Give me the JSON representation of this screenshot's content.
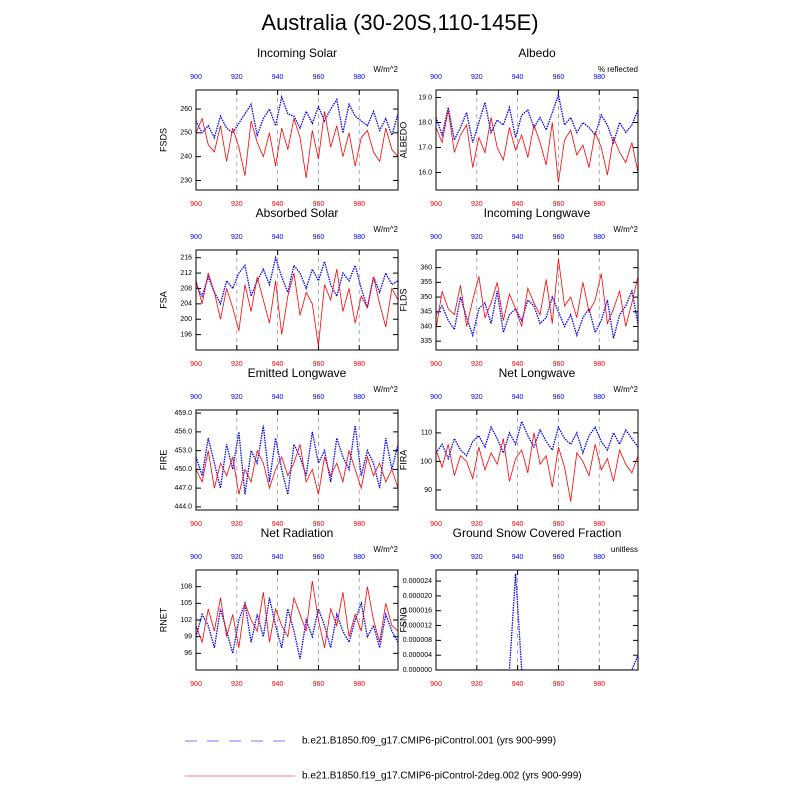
{
  "title": "Australia (30-20S,110-145E)",
  "chart_data": [
    {
      "type": "line",
      "title": "Incoming Solar",
      "ylabel": "FSDS",
      "units": "W/m^2",
      "x": [
        900,
        903,
        906,
        909,
        912,
        915,
        918,
        921,
        924,
        927,
        930,
        933,
        936,
        939,
        942,
        945,
        948,
        951,
        954,
        957,
        960,
        963,
        966,
        969,
        972,
        975,
        978,
        981,
        984,
        987,
        990,
        993,
        996,
        999
      ],
      "xlim": [
        900,
        999
      ],
      "xticks": [
        900,
        920,
        940,
        960,
        980
      ],
      "ylim": [
        226,
        268
      ],
      "yticks": [
        230,
        240,
        250,
        260
      ],
      "grid": true,
      "series": [
        {
          "name": "b.e21.B1850.f09_g17.CMIP6-piControl.001 (yrs 900-999)",
          "color": "#0000ff",
          "dash": true,
          "values": [
            255,
            250,
            253,
            248,
            257,
            252,
            250,
            254,
            258,
            262,
            249,
            256,
            260,
            253,
            265,
            258,
            257,
            252,
            259,
            254,
            261,
            255,
            260,
            264,
            250,
            262,
            257,
            255,
            253,
            259,
            251,
            256,
            249,
            258
          ]
        },
        {
          "name": "b.e21.B1850.f19_g17.CMIP6-piControl-2deg.002 (yrs 900-999)",
          "color": "#ff0000",
          "dash": false,
          "values": [
            250,
            256,
            245,
            242,
            253,
            238,
            252,
            244,
            232,
            255,
            246,
            240,
            250,
            236,
            252,
            243,
            256,
            248,
            231,
            251,
            239,
            259,
            244,
            253,
            240,
            250,
            236,
            248,
            251,
            242,
            238,
            252,
            243,
            240
          ]
        }
      ]
    },
    {
      "type": "line",
      "title": "Albedo",
      "ylabel": "ALBEDO",
      "units": "% reflected",
      "x": [
        900,
        903,
        906,
        909,
        912,
        915,
        918,
        921,
        924,
        927,
        930,
        933,
        936,
        939,
        942,
        945,
        948,
        951,
        954,
        957,
        960,
        963,
        966,
        969,
        972,
        975,
        978,
        981,
        984,
        987,
        990,
        993,
        996,
        999
      ],
      "xlim": [
        900,
        999
      ],
      "xticks": [
        900,
        920,
        940,
        960,
        980
      ],
      "ylim": [
        15.3,
        19.3
      ],
      "yticks": [
        {
          "value": 16,
          "label": "16.0"
        },
        {
          "value": 17,
          "label": "17.0"
        },
        {
          "value": 18,
          "label": "18.0"
        },
        {
          "value": 19,
          "label": "19.0"
        }
      ],
      "grid": true,
      "series": [
        {
          "color": "#0000ff",
          "dash": true,
          "values": [
            18.2,
            17.5,
            18.6,
            17.3,
            17.8,
            18.4,
            17.2,
            18.0,
            18.8,
            17.6,
            18.1,
            17.9,
            18.6,
            17.4,
            18.3,
            18.5,
            17.8,
            18.2,
            17.7,
            18.4,
            19.1,
            17.9,
            18.2,
            17.6,
            18.0,
            17.8,
            17.5,
            18.3,
            17.9,
            17.2,
            18.0,
            17.6,
            17.9,
            18.5
          ]
        },
        {
          "color": "#ff0000",
          "dash": false,
          "values": [
            17.8,
            17.2,
            18.5,
            16.8,
            17.5,
            17.9,
            16.2,
            17.4,
            16.8,
            18.2,
            17.0,
            16.5,
            17.8,
            16.9,
            17.5,
            16.6,
            17.9,
            17.2,
            16.3,
            18.0,
            15.6,
            17.3,
            17.7,
            16.7,
            17.1,
            16.2,
            17.6,
            17.0,
            15.9,
            17.4,
            16.8,
            16.4,
            17.2,
            16.0
          ]
        }
      ]
    },
    {
      "type": "line",
      "title": "Absorbed Solar",
      "ylabel": "FSA",
      "units": "W/m^2",
      "x": [
        900,
        903,
        906,
        909,
        912,
        915,
        918,
        921,
        924,
        927,
        930,
        933,
        936,
        939,
        942,
        945,
        948,
        951,
        954,
        957,
        960,
        963,
        966,
        969,
        972,
        975,
        978,
        981,
        984,
        987,
        990,
        993,
        996,
        999
      ],
      "xlim": [
        900,
        999
      ],
      "xticks": [
        900,
        920,
        940,
        960,
        980
      ],
      "ylim": [
        192,
        218
      ],
      "yticks": [
        196,
        200,
        204,
        208,
        212,
        216
      ],
      "grid": true,
      "series": [
        {
          "color": "#0000ff",
          "dash": true,
          "values": [
            209,
            206,
            211,
            207,
            204,
            210,
            208,
            212,
            214,
            206,
            210,
            213,
            209,
            216,
            211,
            207,
            214,
            212,
            208,
            213,
            210,
            215,
            209,
            206,
            212,
            210,
            214,
            208,
            203,
            211,
            207,
            212,
            209,
            210
          ]
        },
        {
          "color": "#ff0000",
          "dash": false,
          "values": [
            210,
            204,
            212,
            207,
            200,
            208,
            203,
            197,
            209,
            202,
            211,
            205,
            199,
            210,
            196,
            206,
            212,
            201,
            207,
            204,
            193,
            209,
            205,
            213,
            202,
            208,
            199,
            206,
            203,
            211,
            204,
            198,
            208,
            205
          ]
        }
      ]
    },
    {
      "type": "line",
      "title": "Incoming Longwave",
      "ylabel": "FLDS",
      "units": "W/m^2",
      "x": [
        900,
        903,
        906,
        909,
        912,
        915,
        918,
        921,
        924,
        927,
        930,
        933,
        936,
        939,
        942,
        945,
        948,
        951,
        954,
        957,
        960,
        963,
        966,
        969,
        972,
        975,
        978,
        981,
        984,
        987,
        990,
        993,
        996,
        999
      ],
      "xlim": [
        900,
        999
      ],
      "xticks": [
        900,
        920,
        940,
        960,
        980
      ],
      "ylim": [
        332,
        366
      ],
      "yticks": [
        335,
        340,
        345,
        350,
        355,
        360
      ],
      "grid": true,
      "series": [
        {
          "color": "#0000ff",
          "dash": true,
          "values": [
            344,
            347,
            342,
            339,
            350,
            343,
            337,
            346,
            348,
            341,
            352,
            338,
            344,
            346,
            342,
            349,
            347,
            341,
            343,
            350,
            345,
            340,
            344,
            337,
            343,
            346,
            338,
            342,
            349,
            336,
            344,
            347,
            352,
            341
          ]
        },
        {
          "color": "#ff0000",
          "dash": false,
          "values": [
            339,
            352,
            346,
            344,
            354,
            340,
            349,
            357,
            343,
            348,
            355,
            342,
            351,
            346,
            340,
            353,
            348,
            344,
            356,
            341,
            363,
            347,
            350,
            343,
            355,
            345,
            349,
            358,
            341,
            346,
            352,
            340,
            348,
            357
          ]
        }
      ]
    },
    {
      "type": "line",
      "title": "Emitted Longwave",
      "ylabel": "FIRE",
      "units": "W/m^2",
      "x": [
        900,
        903,
        906,
        909,
        912,
        915,
        918,
        921,
        924,
        927,
        930,
        933,
        936,
        939,
        942,
        945,
        948,
        951,
        954,
        957,
        960,
        963,
        966,
        969,
        972,
        975,
        978,
        981,
        984,
        987,
        990,
        993,
        996,
        999
      ],
      "xlim": [
        900,
        999
      ],
      "xticks": [
        900,
        920,
        940,
        960,
        980
      ],
      "ylim": [
        443.5,
        459.5
      ],
      "yticks": [
        {
          "value": 444,
          "label": "444.0"
        },
        {
          "value": 447,
          "label": "447.0"
        },
        {
          "value": 450,
          "label": "450.0"
        },
        {
          "value": 453,
          "label": "453.0"
        },
        {
          "value": 456,
          "label": "456.0"
        },
        {
          "value": 459,
          "label": "459.0"
        }
      ],
      "grid": true,
      "series": [
        {
          "color": "#0000ff",
          "dash": true,
          "values": [
            452,
            449,
            455,
            451,
            447,
            454,
            450,
            456,
            446,
            453,
            451,
            457,
            448,
            455,
            450,
            446,
            454,
            452,
            449,
            456,
            451,
            453,
            448,
            455,
            452,
            450,
            457,
            449,
            453,
            451,
            447,
            455,
            450,
            454
          ]
        },
        {
          "color": "#ff0000",
          "dash": false,
          "values": [
            450,
            448,
            453,
            447,
            451,
            449,
            452,
            446,
            450,
            448,
            453,
            451,
            447,
            450,
            452,
            449,
            451,
            454,
            448,
            450,
            446,
            452,
            449,
            451,
            448,
            453,
            450,
            447,
            452,
            449,
            451,
            448,
            450,
            447
          ]
        }
      ]
    },
    {
      "type": "line",
      "title": "Net Longwave",
      "ylabel": "FIRA",
      "units": "W/m^2",
      "x": [
        900,
        903,
        906,
        909,
        912,
        915,
        918,
        921,
        924,
        927,
        930,
        933,
        936,
        939,
        942,
        945,
        948,
        951,
        954,
        957,
        960,
        963,
        966,
        969,
        972,
        975,
        978,
        981,
        984,
        987,
        990,
        993,
        996,
        999
      ],
      "xlim": [
        900,
        999
      ],
      "xticks": [
        900,
        920,
        940,
        960,
        980
      ],
      "ylim": [
        83,
        118
      ],
      "yticks": [
        90,
        100,
        110
      ],
      "grid": true,
      "series": [
        {
          "color": "#0000ff",
          "dash": true,
          "values": [
            103,
            106,
            101,
            108,
            104,
            102,
            107,
            109,
            105,
            112,
            108,
            103,
            110,
            106,
            114,
            109,
            105,
            111,
            107,
            104,
            112,
            108,
            106,
            110,
            103,
            109,
            112,
            107,
            104,
            110,
            106,
            111,
            108,
            105
          ]
        },
        {
          "color": "#ff0000",
          "dash": false,
          "values": [
            104,
            98,
            106,
            95,
            102,
            100,
            94,
            105,
            97,
            103,
            99,
            108,
            93,
            101,
            104,
            96,
            110,
            99,
            102,
            91,
            105,
            98,
            86,
            103,
            100,
            95,
            106,
            97,
            101,
            93,
            104,
            99,
            96,
            102
          ]
        }
      ]
    },
    {
      "type": "line",
      "title": "Net Radiation",
      "ylabel": "RNET",
      "units": "W/m^2",
      "x": [
        900,
        903,
        906,
        909,
        912,
        915,
        918,
        921,
        924,
        927,
        930,
        933,
        936,
        939,
        942,
        945,
        948,
        951,
        954,
        957,
        960,
        963,
        966,
        969,
        972,
        975,
        978,
        981,
        984,
        987,
        990,
        993,
        996,
        999
      ],
      "xlim": [
        900,
        999
      ],
      "xticks": [
        900,
        920,
        940,
        960,
        980
      ],
      "ylim": [
        93,
        111
      ],
      "yticks": [
        96,
        99,
        102,
        105,
        108
      ],
      "grid": true,
      "series": [
        {
          "color": "#0000ff",
          "dash": true,
          "values": [
            99,
            103,
            101,
            97,
            104,
            100,
            96,
            102,
            105,
            98,
            103,
            99,
            106,
            101,
            97,
            104,
            100,
            95,
            102,
            99,
            104,
            101,
            97,
            103,
            100,
            98,
            102,
            105,
            99,
            101,
            97,
            103,
            100,
            98
          ]
        },
        {
          "color": "#ff0000",
          "dash": false,
          "values": [
            101,
            98,
            104,
            100,
            106,
            99,
            103,
            97,
            105,
            102,
            100,
            107,
            98,
            104,
            101,
            99,
            106,
            103,
            100,
            109,
            102,
            97,
            104,
            101,
            107,
            99,
            103,
            100,
            108,
            102,
            98,
            105,
            101,
            100
          ]
        }
      ]
    },
    {
      "type": "line",
      "title": "Ground Snow Covered Fraction",
      "ylabel": "FSNO",
      "units": "unitless",
      "x": [
        900,
        903,
        906,
        909,
        912,
        915,
        918,
        921,
        924,
        927,
        930,
        933,
        936,
        939,
        942,
        945,
        948,
        951,
        954,
        957,
        960,
        963,
        966,
        969,
        972,
        975,
        978,
        981,
        984,
        987,
        990,
        993,
        996,
        999
      ],
      "xlim": [
        900,
        999
      ],
      "xticks": [
        900,
        920,
        940,
        960,
        980
      ],
      "ylim": [
        0,
        2.7e-05
      ],
      "yticks": [
        {
          "value": 0,
          "label": "0.000000"
        },
        {
          "value": 4e-06,
          "label": "0.000004"
        },
        {
          "value": 8e-06,
          "label": "0.000008"
        },
        {
          "value": 1.2e-05,
          "label": "0.000012"
        },
        {
          "value": 1.6e-05,
          "label": "0.000016"
        },
        {
          "value": 2e-05,
          "label": "0.000020"
        },
        {
          "value": 2.4e-05,
          "label": "0.000024"
        }
      ],
      "grid": true,
      "series": [
        {
          "color": "#0000ff",
          "dash": true,
          "values": [
            0,
            0,
            0,
            0,
            0,
            0,
            0,
            0,
            0,
            0,
            0,
            0,
            0,
            2.6e-05,
            0,
            0,
            0,
            0,
            0,
            0,
            0,
            0,
            0,
            0,
            0,
            0,
            0,
            0,
            0,
            0,
            0,
            0,
            0,
            4e-06
          ]
        },
        {
          "color": "#ff0000",
          "dash": false,
          "values": [
            0,
            0,
            0,
            0,
            0,
            0,
            0,
            0,
            0,
            0,
            0,
            0,
            0,
            0,
            0,
            0,
            0,
            0,
            0,
            0,
            0,
            0,
            0,
            0,
            0,
            0,
            0,
            0,
            0,
            0,
            0,
            0,
            0,
            0
          ]
        }
      ]
    }
  ]
}
